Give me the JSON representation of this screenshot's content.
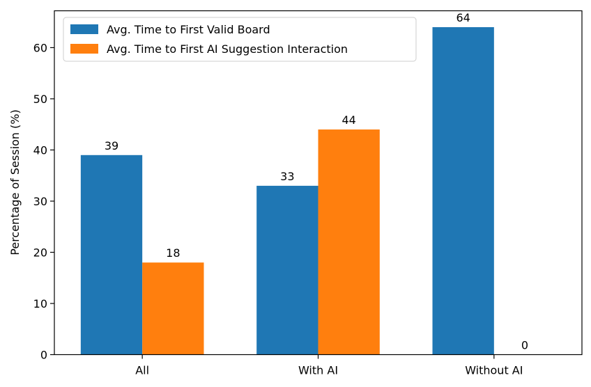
{
  "chart_data": {
    "type": "bar",
    "title": "",
    "xlabel": "",
    "ylabel": "Percentage of Session (%)",
    "categories": [
      "All",
      "With AI",
      "Without AI"
    ],
    "series": [
      {
        "name": "Avg. Time to First Valid Board",
        "values": [
          39,
          33,
          64
        ],
        "color": "#1f77b4"
      },
      {
        "name": "Avg. Time to First AI Suggestion Interaction",
        "values": [
          18,
          44,
          0
        ],
        "color": "#ff7f0e"
      }
    ],
    "ylim": [
      0,
      67.2
    ],
    "yticks": [
      0,
      10,
      20,
      30,
      40,
      50,
      60
    ],
    "grid": false,
    "legend_position": "top-left",
    "data_labels": true
  }
}
